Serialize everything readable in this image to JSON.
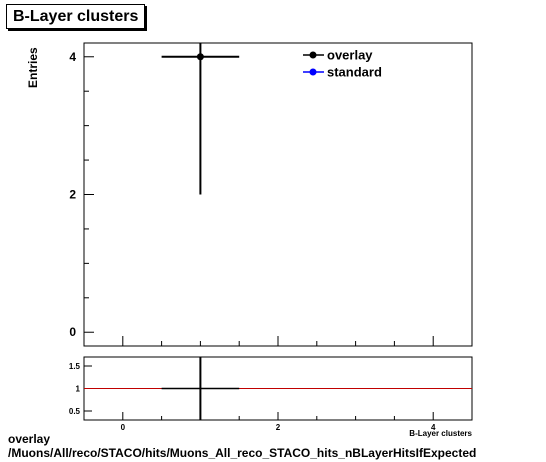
{
  "title": "B-Layer clusters",
  "footer": {
    "line1": "overlay",
    "line2": "/Muons/All/reco/STACO/hits/Muons_All_reco_STACO_hits_nBLayerHitsIfExpected"
  },
  "chart_data": [
    {
      "type": "scatter",
      "ylabel": "Entries",
      "xlabel": "B-Layer clusters",
      "xlim": [
        -0.5,
        4.5
      ],
      "ylim": [
        -0.2,
        4.2
      ],
      "yticks": [
        0,
        2,
        4
      ],
      "legend_position": "top-right",
      "grid": false,
      "series": [
        {
          "name": "overlay",
          "color": "#000000",
          "points": [
            {
              "x": 1,
              "y": 4,
              "xerr": 0.5,
              "yerr": 2
            }
          ]
        },
        {
          "name": "standard",
          "color": "#0000ff",
          "points": []
        }
      ]
    },
    {
      "type": "line",
      "xlim": [
        -0.5,
        4.5
      ],
      "ylim": [
        0.3,
        1.7
      ],
      "xticks": [
        0,
        2,
        4
      ],
      "yticks": [
        0.5,
        1,
        1.5
      ],
      "reference_line": 1,
      "reference_color": "#c00000",
      "grid": false,
      "points": [
        {
          "x": 1,
          "y": 1,
          "xerr": 0.5
        }
      ]
    }
  ]
}
